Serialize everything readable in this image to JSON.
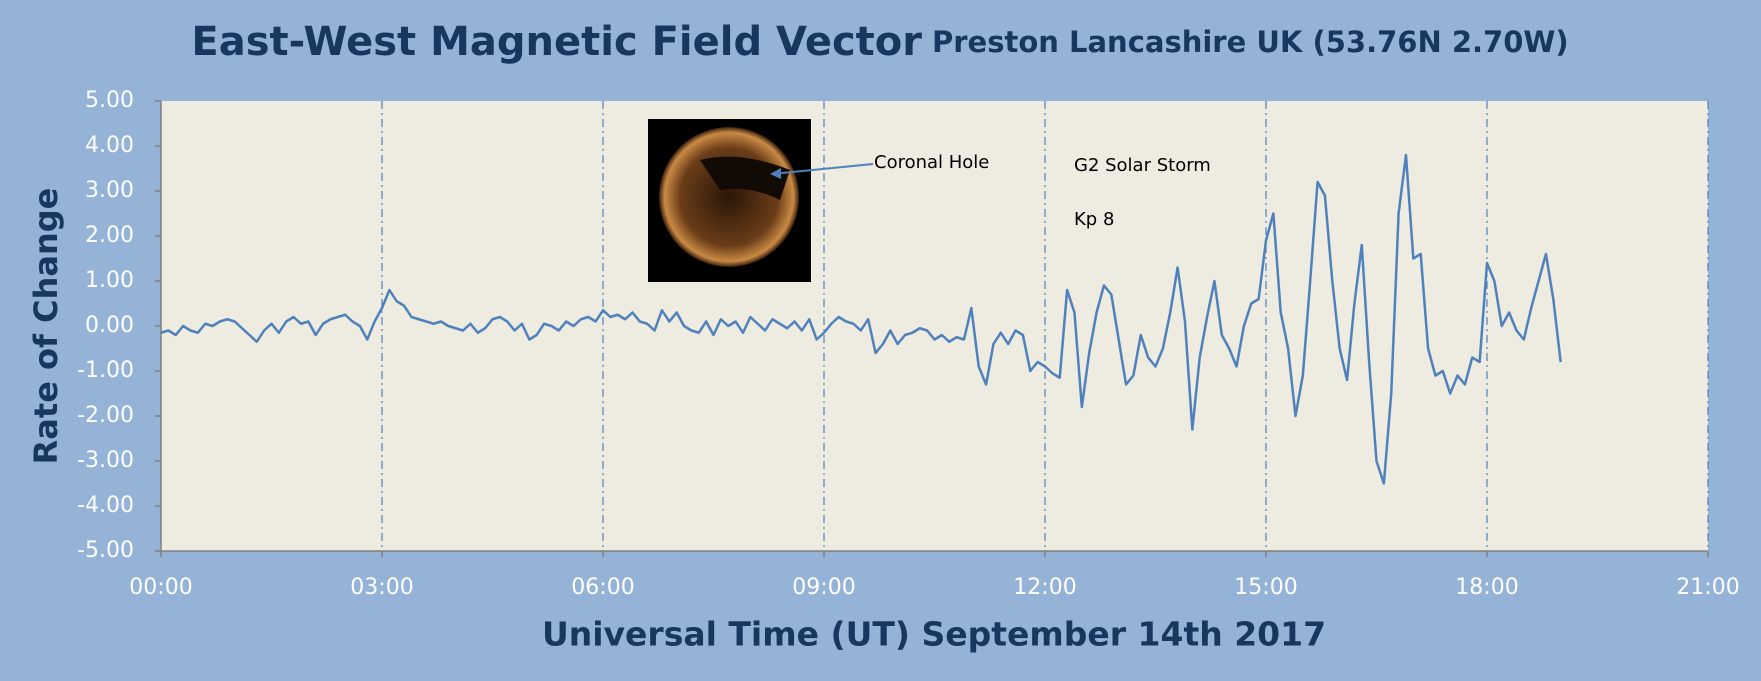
{
  "chart_data": {
    "type": "line",
    "title": "East-West Magnetic Field Vector",
    "subtitle": "Preston Lancashire UK (53.76N 2.70W)",
    "xlabel": "Universal Time (UT) September 14th 2017",
    "ylabel": "Rate of Change",
    "annotations": [
      "Coronal Hole",
      "G2 Solar Storm",
      "Kp 8"
    ],
    "color": "#4f81bd",
    "grid": true,
    "xlim": [
      0,
      21
    ],
    "xticks": [
      {
        "value": 0,
        "label": "00:00"
      },
      {
        "value": 3,
        "label": "03:00"
      },
      {
        "value": 6,
        "label": "06:00"
      },
      {
        "value": 9,
        "label": "09:00"
      },
      {
        "value": 12,
        "label": "12:00"
      },
      {
        "value": 15,
        "label": "15:00"
      },
      {
        "value": 18,
        "label": "18:00"
      },
      {
        "value": 21,
        "label": "21:00"
      }
    ],
    "ylim": [
      -5,
      5
    ],
    "yticks": [
      {
        "value": 5,
        "label": "5.00"
      },
      {
        "value": 4,
        "label": "4.00"
      },
      {
        "value": 3,
        "label": "3.00"
      },
      {
        "value": 2,
        "label": "2.00"
      },
      {
        "value": 1,
        "label": "1.00"
      },
      {
        "value": 0,
        "label": "0.00"
      },
      {
        "value": -1,
        "label": "-1.00"
      },
      {
        "value": -2,
        "label": "-2.00"
      },
      {
        "value": -3,
        "label": "-3.00"
      },
      {
        "value": -4,
        "label": "-4.00"
      },
      {
        "value": -5,
        "label": "-5.00"
      }
    ],
    "x": [
      0,
      0.1,
      0.2,
      0.3,
      0.4,
      0.5,
      0.6,
      0.7,
      0.8,
      0.9,
      1,
      1.1,
      1.2,
      1.3,
      1.4,
      1.5,
      1.6,
      1.7,
      1.8,
      1.9,
      2,
      2.1,
      2.2,
      2.3,
      2.4,
      2.5,
      2.6,
      2.7,
      2.8,
      2.9,
      3,
      3.1,
      3.2,
      3.3,
      3.4,
      3.5,
      3.6,
      3.7,
      3.8,
      3.9,
      4,
      4.1,
      4.2,
      4.3,
      4.4,
      4.5,
      4.6,
      4.7,
      4.8,
      4.9,
      5,
      5.1,
      5.2,
      5.3,
      5.4,
      5.5,
      5.6,
      5.7,
      5.8,
      5.9,
      6,
      6.1,
      6.2,
      6.3,
      6.4,
      6.5,
      6.6,
      6.7,
      6.8,
      6.9,
      7,
      7.1,
      7.2,
      7.3,
      7.4,
      7.5,
      7.6,
      7.7,
      7.8,
      7.9,
      8,
      8.1,
      8.2,
      8.3,
      8.4,
      8.5,
      8.6,
      8.7,
      8.8,
      8.9,
      9,
      9.1,
      9.2,
      9.3,
      9.4,
      9.5,
      9.6,
      9.7,
      9.8,
      9.9,
      10,
      10.1,
      10.2,
      10.3,
      10.4,
      10.5,
      10.6,
      10.7,
      10.8,
      10.9,
      11,
      11.1,
      11.2,
      11.3,
      11.4,
      11.5,
      11.6,
      11.7,
      11.8,
      11.9,
      12,
      12.1,
      12.2,
      12.3,
      12.4,
      12.5,
      12.6,
      12.7,
      12.8,
      12.9,
      13,
      13.1,
      13.2,
      13.3,
      13.4,
      13.5,
      13.6,
      13.7,
      13.8,
      13.9,
      14,
      14.1,
      14.2,
      14.3,
      14.4,
      14.5,
      14.6,
      14.7,
      14.8,
      14.9,
      15,
      15.1,
      15.2,
      15.3,
      15.4,
      15.5,
      15.6,
      15.7,
      15.8,
      15.9,
      16,
      16.1,
      16.2,
      16.3,
      16.4,
      16.5,
      16.6,
      16.7,
      16.8,
      16.9,
      17,
      17.1,
      17.2,
      17.3,
      17.4,
      17.5,
      17.6,
      17.7,
      17.8,
      17.9,
      18,
      18.1,
      18.2,
      18.3,
      18.4,
      18.5,
      18.6,
      18.7,
      18.8,
      18.9,
      19
    ],
    "values": [
      -0.15,
      -0.1,
      -0.2,
      0.0,
      -0.1,
      -0.15,
      0.05,
      0.0,
      0.1,
      0.15,
      0.1,
      -0.05,
      -0.2,
      -0.35,
      -0.1,
      0.05,
      -0.15,
      0.1,
      0.2,
      0.05,
      0.1,
      -0.2,
      0.05,
      0.15,
      0.2,
      0.25,
      0.1,
      0.0,
      -0.3,
      0.1,
      0.4,
      0.8,
      0.55,
      0.45,
      0.2,
      0.15,
      0.1,
      0.05,
      0.1,
      0.0,
      -0.05,
      -0.1,
      0.05,
      -0.15,
      -0.05,
      0.15,
      0.2,
      0.1,
      -0.1,
      0.05,
      -0.3,
      -0.2,
      0.05,
      0.0,
      -0.1,
      0.1,
      0.0,
      0.15,
      0.2,
      0.1,
      0.35,
      0.2,
      0.25,
      0.15,
      0.3,
      0.1,
      0.05,
      -0.1,
      0.35,
      0.1,
      0.3,
      0.0,
      -0.1,
      -0.15,
      0.1,
      -0.2,
      0.15,
      0.0,
      0.1,
      -0.15,
      0.2,
      0.05,
      -0.1,
      0.15,
      0.05,
      -0.05,
      0.1,
      -0.1,
      0.15,
      -0.3,
      -0.15,
      0.05,
      0.2,
      0.1,
      0.05,
      -0.1,
      0.15,
      -0.6,
      -0.4,
      -0.1,
      -0.4,
      -0.2,
      -0.15,
      -0.05,
      -0.1,
      -0.3,
      -0.2,
      -0.35,
      -0.25,
      -0.3,
      0.4,
      -0.9,
      -1.3,
      -0.4,
      -0.15,
      -0.4,
      -0.1,
      -0.2,
      -1.0,
      -0.8,
      -0.9,
      -1.05,
      -1.15,
      0.8,
      0.3,
      -1.8,
      -0.6,
      0.3,
      0.9,
      0.7,
      -0.3,
      -1.3,
      -1.1,
      -0.2,
      -0.7,
      -0.9,
      -0.5,
      0.3,
      1.3,
      0.1,
      -2.3,
      -0.7,
      0.2,
      1.0,
      -0.2,
      -0.5,
      -0.9,
      0.0,
      0.5,
      0.6,
      1.9,
      2.5,
      0.3,
      -0.5,
      -2.0,
      -1.1,
      1.0,
      3.2,
      2.9,
      1.0,
      -0.5,
      -1.2,
      0.5,
      1.8,
      -0.8,
      -3.0,
      -3.5,
      -1.5,
      2.5,
      3.8,
      1.5,
      1.6,
      -0.5,
      -1.1,
      -1.0,
      -1.5,
      -1.1,
      -1.3,
      -0.7,
      -0.8,
      1.4,
      1.0,
      0.0,
      0.3,
      -0.1,
      -0.3,
      0.4,
      1.0,
      1.6,
      0.6,
      -0.8
    ]
  }
}
